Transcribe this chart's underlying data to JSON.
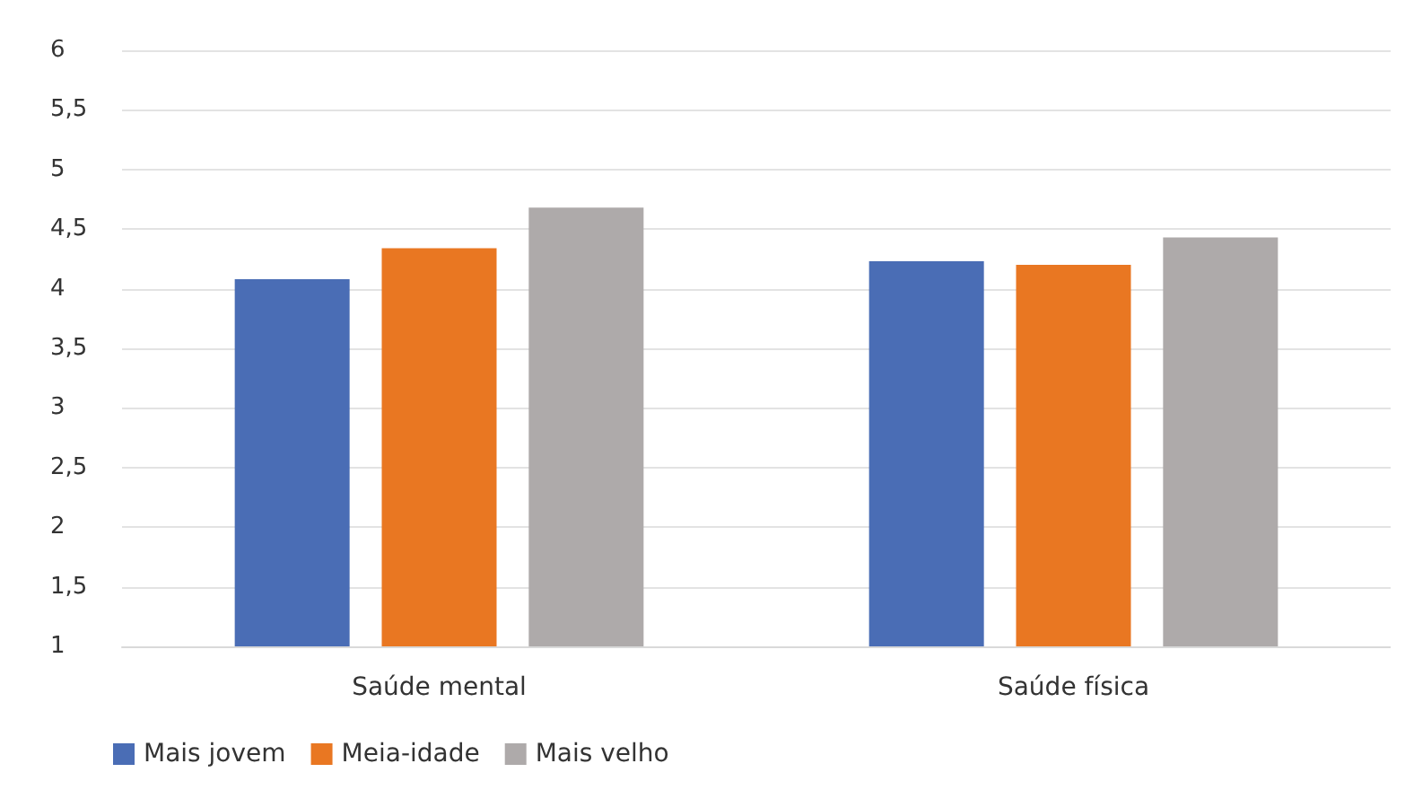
{
  "chart_data": {
    "type": "bar",
    "categories": [
      "Saúde mental",
      "Saúde física"
    ],
    "series": [
      {
        "name": "Mais jovem",
        "color": "#4a6db5",
        "values": [
          4.08,
          4.23
        ]
      },
      {
        "name": "Meia-idade",
        "color": "#e97722",
        "values": [
          4.34,
          4.2
        ]
      },
      {
        "name": "Mais velho",
        "color": "#aeaaaa",
        "values": [
          4.68,
          4.43
        ]
      }
    ],
    "ylim": [
      1,
      6
    ],
    "yticks": [
      1,
      {
        "value": 1.5,
        "label": "1,5"
      },
      2,
      {
        "value": 2.5,
        "label": "2,5"
      },
      3,
      {
        "value": 3.5,
        "label": "3,5"
      },
      4,
      {
        "value": 4.5,
        "label": "4,5"
      },
      5,
      {
        "value": 5.5,
        "label": "5,5"
      },
      6
    ],
    "grid": "y",
    "legend": "bottom left"
  }
}
